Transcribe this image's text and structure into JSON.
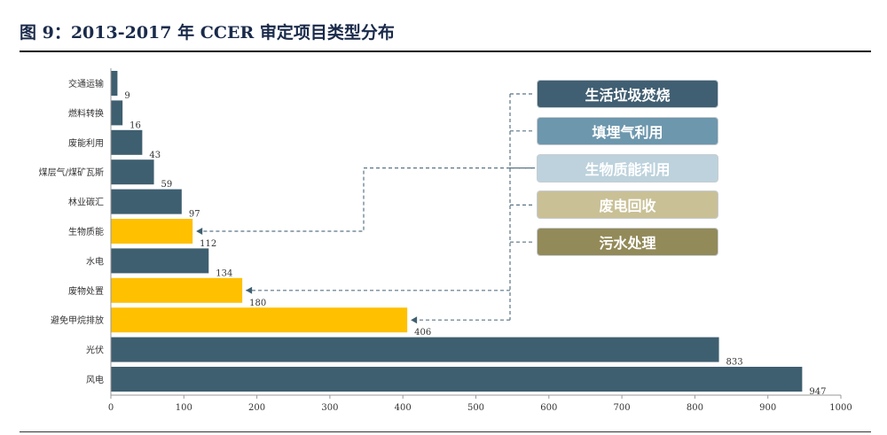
{
  "figure_title": "图 9：2013-2017 年 CCER 审定项目类型分布",
  "legend_boxes": [
    {
      "label": "生活垃圾焚烧",
      "color": "#415f72",
      "text_color": "#ffffff"
    },
    {
      "label": "填埋气利用",
      "color": "#6d97ad",
      "text_color": "#ffffff"
    },
    {
      "label": "生物质能利用",
      "color": "#bdd2dc",
      "text_color": "#ffffff"
    },
    {
      "label": "废电回收",
      "color": "#c9c096",
      "text_color": "#ffffff"
    },
    {
      "label": "污水处理",
      "color": "#938a59",
      "text_color": "#ffffff"
    }
  ],
  "chart_data": {
    "type": "bar",
    "orientation": "horizontal",
    "categories": [
      "交通运输",
      "燃料转换",
      "废能利用",
      "煤层气/煤矿瓦斯",
      "林业碳汇",
      "生物质能",
      "水电",
      "废物处置",
      "避免甲烷排放",
      "光伏",
      "风电"
    ],
    "values": [
      9,
      16,
      43,
      59,
      97,
      112,
      134,
      180,
      406,
      833,
      947
    ],
    "highlighted": [
      "生物质能",
      "废物处置",
      "避免甲烷排放"
    ],
    "colors": {
      "default": "#3e5f70",
      "highlight": "#ffc000"
    },
    "xlim": [
      0,
      1000
    ],
    "xticks": [
      0,
      100,
      200,
      300,
      400,
      500,
      600,
      700,
      800,
      900,
      1000
    ],
    "title": "",
    "xlabel": "",
    "ylabel": "",
    "grid": false
  }
}
